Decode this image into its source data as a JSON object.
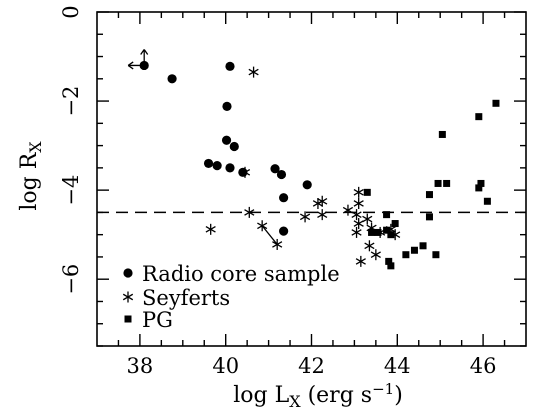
{
  "chart_data": {
    "type": "scatter",
    "xlabel": "log L_X (erg s^-1)",
    "ylabel": "log R_X",
    "xlim": [
      37,
      47
    ],
    "ylim": [
      -7.5,
      0
    ],
    "x_ticks": [
      38,
      40,
      42,
      44,
      46
    ],
    "y_ticks": [
      0,
      -2,
      -4,
      -6
    ],
    "grid": false,
    "legend_position": "bottom-left",
    "reference_line": {
      "y": -4.5,
      "style": "dashed"
    },
    "series": [
      {
        "name": "Radio core sample",
        "marker": "filled-circle",
        "points": [
          [
            38.1,
            -1.2
          ],
          [
            38.75,
            -1.5
          ],
          [
            40.1,
            -1.22
          ],
          [
            40.03,
            -2.12
          ],
          [
            40.02,
            -2.88
          ],
          [
            40.2,
            -3.02
          ],
          [
            39.6,
            -3.4
          ],
          [
            39.8,
            -3.45
          ],
          [
            40.1,
            -3.5
          ],
          [
            40.4,
            -3.6
          ],
          [
            41.15,
            -3.52
          ],
          [
            41.3,
            -3.65
          ],
          [
            41.35,
            -4.17
          ],
          [
            41.9,
            -3.88
          ],
          [
            41.35,
            -4.92
          ]
        ],
        "annotations": [
          {
            "x": 38.1,
            "y": -1.2,
            "arrows": [
              "left",
              "up"
            ]
          }
        ]
      },
      {
        "name": "Seyferts",
        "marker": "asterisk",
        "points": [
          [
            40.65,
            -1.35
          ],
          [
            40.45,
            -3.6
          ],
          [
            39.65,
            -4.88
          ],
          [
            40.55,
            -4.5
          ],
          [
            40.85,
            -4.8
          ],
          [
            41.2,
            -5.22
          ],
          [
            41.85,
            -4.6
          ],
          [
            42.15,
            -4.3
          ],
          [
            42.25,
            -4.25
          ],
          [
            42.25,
            -4.55
          ],
          [
            42.85,
            -4.45
          ],
          [
            43.1,
            -4.05
          ],
          [
            43.1,
            -4.3
          ],
          [
            43.05,
            -4.55
          ],
          [
            43.1,
            -4.75
          ],
          [
            43.05,
            -4.95
          ],
          [
            43.3,
            -4.65
          ],
          [
            43.4,
            -4.85
          ],
          [
            43.6,
            -4.95
          ],
          [
            43.85,
            -4.88
          ],
          [
            43.95,
            -5.0
          ],
          [
            43.35,
            -5.25
          ],
          [
            43.5,
            -5.45
          ],
          [
            43.15,
            -5.6
          ]
        ],
        "links": [
          {
            "from": [
              40.85,
              -4.8
            ],
            "to": [
              41.2,
              -5.22
            ]
          }
        ]
      },
      {
        "name": "PG",
        "marker": "filled-square",
        "points": [
          [
            43.3,
            -4.05
          ],
          [
            43.75,
            -4.55
          ],
          [
            43.95,
            -4.75
          ],
          [
            43.4,
            -4.95
          ],
          [
            43.55,
            -4.95
          ],
          [
            43.75,
            -4.9
          ],
          [
            43.85,
            -5.0
          ],
          [
            43.8,
            -5.6
          ],
          [
            43.85,
            -5.7
          ],
          [
            44.2,
            -5.45
          ],
          [
            44.4,
            -5.35
          ],
          [
            44.6,
            -5.25
          ],
          [
            44.9,
            -5.45
          ],
          [
            44.75,
            -4.1
          ],
          [
            44.75,
            -4.6
          ],
          [
            44.95,
            -3.85
          ],
          [
            45.15,
            -3.85
          ],
          [
            45.05,
            -2.75
          ],
          [
            45.9,
            -3.95
          ],
          [
            45.95,
            -3.85
          ],
          [
            46.1,
            -4.25
          ],
          [
            45.9,
            -2.35
          ],
          [
            46.3,
            -2.05
          ]
        ]
      }
    ]
  }
}
